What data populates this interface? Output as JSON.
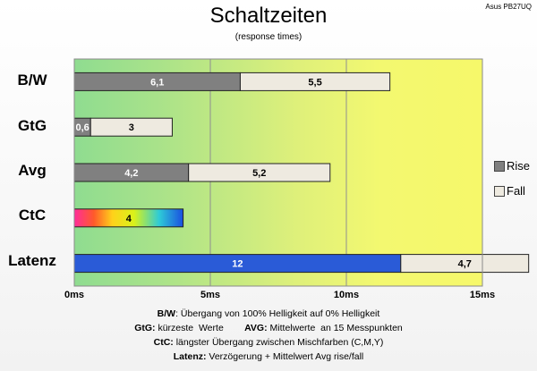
{
  "monitor": "Asus PB27UQ",
  "chart_data": {
    "type": "bar",
    "stacked": true,
    "orientation": "horizontal",
    "title": "Schaltzeiten",
    "subtitle": "(response times)",
    "categories": [
      "B/W",
      "GtG",
      "Avg",
      "CtC",
      "Latenz"
    ],
    "series": [
      {
        "name": "Rise",
        "color": "#808080",
        "values": [
          6.1,
          0.6,
          4.2,
          null,
          null
        ],
        "labels": [
          "6,1",
          "0,6",
          "4,2",
          "",
          ""
        ]
      },
      {
        "name": "Fall",
        "color": "#eeeae0",
        "values": [
          5.5,
          3,
          5.2,
          null,
          4.7
        ],
        "labels": [
          "5,5",
          "3",
          "5,2",
          "",
          "4,7"
        ]
      }
    ],
    "special_bars": [
      {
        "category": "CtC",
        "value": 4,
        "label": "4",
        "fill": "rainbow"
      },
      {
        "category": "Latenz",
        "value": 12,
        "label": "12",
        "fill": "#2a5bd7"
      }
    ],
    "xlim": [
      0,
      15
    ],
    "xticks": [
      0,
      5,
      10,
      15
    ],
    "xtick_labels": [
      "0ms",
      "5ms",
      "10ms",
      "15ms"
    ],
    "grid": true,
    "legend_position": "right",
    "background": "green-to-yellow gradient"
  },
  "footnotes": [
    {
      "parts": [
        {
          "bold": true,
          "text": "B/W"
        },
        {
          "bold": false,
          "text": ":  Übergang von 100% Helligkeit auf 0% Helligkeit"
        }
      ]
    },
    {
      "parts": [
        {
          "bold": true,
          "text": "GtG:"
        },
        {
          "bold": false,
          "text": " kürzeste  Werte        "
        },
        {
          "bold": true,
          "text": "AVG:"
        },
        {
          "bold": false,
          "text": " Mittelwerte  an 15 Messpunkten"
        }
      ]
    },
    {
      "parts": [
        {
          "bold": true,
          "text": "CtC:"
        },
        {
          "bold": false,
          "text": " längster Übergang  zwischen Mischfarben (C,M,Y)"
        }
      ]
    },
    {
      "parts": [
        {
          "bold": true,
          "text": "Latenz:"
        },
        {
          "bold": false,
          "text": " Verzögerung  + Mittelwert  Avg rise/fall"
        }
      ]
    }
  ]
}
